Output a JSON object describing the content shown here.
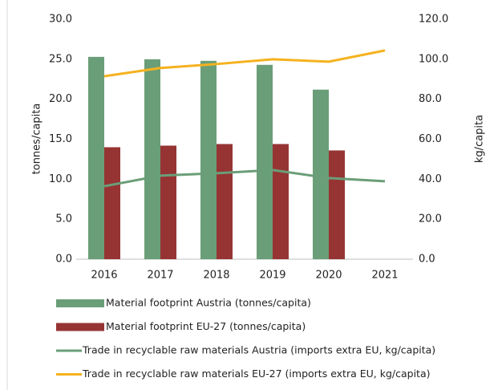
{
  "chart_data": {
    "type": "bar-line",
    "categories": [
      "2016",
      "2017",
      "2018",
      "2019",
      "2020",
      "2021"
    ],
    "ylabel": "tonnes/capita",
    "y2label": "kg/capita",
    "ylim": [
      0,
      30
    ],
    "yticks": [
      {
        "value": 0,
        "label": "0.0"
      },
      {
        "value": 5,
        "label": "5.0"
      },
      {
        "value": 10,
        "label": "10.0"
      },
      {
        "value": 15,
        "label": "15.0"
      },
      {
        "value": 20,
        "label": "20.0"
      },
      {
        "value": 25,
        "label": "25.0"
      },
      {
        "value": 30,
        "label": "30.0"
      }
    ],
    "y2lim": [
      0,
      120
    ],
    "y2ticks": [
      {
        "value": 0,
        "label": "0.0"
      },
      {
        "value": 20,
        "label": "20.0"
      },
      {
        "value": 40,
        "label": "40.0"
      },
      {
        "value": 60,
        "label": "60.0"
      },
      {
        "value": 80,
        "label": "80.0"
      },
      {
        "value": 100,
        "label": "100.0"
      },
      {
        "value": 120,
        "label": "120.0"
      }
    ],
    "series": [
      {
        "name": "Material footprint Austria (tonnes/capita)",
        "type": "bar",
        "color": "#6a9e78",
        "values": [
          25.3,
          25.0,
          24.8,
          24.3,
          21.2,
          null
        ]
      },
      {
        "name": "Material footprint EU-27 (tonnes/capita)",
        "type": "bar",
        "color": "#963434",
        "values": [
          14.0,
          14.2,
          14.4,
          14.4,
          13.6,
          null
        ]
      },
      {
        "name": "Trade in recyclable raw materials Austria (imports extra EU, kg/capita)",
        "type": "line",
        "axis": "y2",
        "color": "#6a9e78",
        "values": [
          36.5,
          41.8,
          43.0,
          44.6,
          40.6,
          39.0
        ]
      },
      {
        "name": "Trade in recyclable raw materials EU-27 (imports extra EU, kg/capita)",
        "type": "line",
        "axis": "y2",
        "color": "#f5b21f",
        "values": [
          91.5,
          95.6,
          97.6,
          100.0,
          98.8,
          104.4
        ]
      }
    ]
  }
}
